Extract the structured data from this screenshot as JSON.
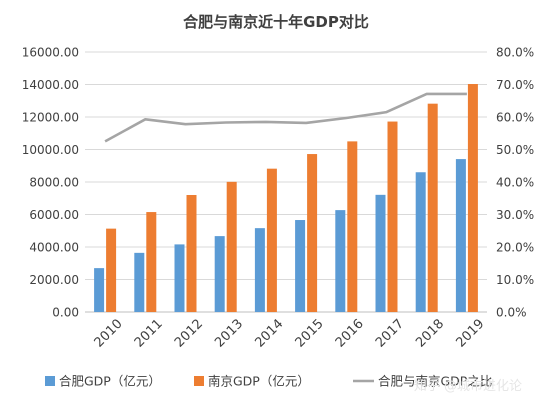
{
  "chart_data": {
    "type": "bar",
    "title": "合肥与南京近十年GDP对比",
    "categories": [
      "2010",
      "2011",
      "2012",
      "2013",
      "2014",
      "2015",
      "2016",
      "2017",
      "2018",
      "2019"
    ],
    "series": [
      {
        "name": "合肥GDP（亿元）",
        "type": "bar",
        "axis": "left",
        "color": "#5b9bd5",
        "values": [
          2700,
          3640,
          4160,
          4670,
          5160,
          5660,
          6270,
          7210,
          8600,
          9410
        ]
      },
      {
        "name": "南京GDP（亿元）",
        "type": "bar",
        "axis": "left",
        "color": "#ed7d31",
        "values": [
          5130,
          6150,
          7200,
          8010,
          8820,
          9720,
          10500,
          11720,
          12820,
          14030
        ]
      },
      {
        "name": "合肥与南京GDP之比",
        "type": "line",
        "axis": "right",
        "color": "#a5a5a5",
        "values": [
          0.525,
          0.593,
          0.578,
          0.583,
          0.585,
          0.582,
          0.597,
          0.615,
          0.671,
          0.671
        ]
      }
    ],
    "y_left": {
      "ylim": [
        0,
        16000
      ],
      "ticks": [
        "0.00",
        "2000.00",
        "4000.00",
        "6000.00",
        "8000.00",
        "10000.00",
        "12000.00",
        "14000.00",
        "16000.00"
      ]
    },
    "y_right": {
      "ylim": [
        0,
        0.8
      ],
      "ticks": [
        "0.0%",
        "10.0%",
        "20.0%",
        "30.0%",
        "40.0%",
        "50.0%",
        "60.0%",
        "70.0%",
        "80.0%"
      ]
    },
    "grid": true,
    "legend_position": "bottom"
  },
  "watermark": "知乎 @城市进化论"
}
